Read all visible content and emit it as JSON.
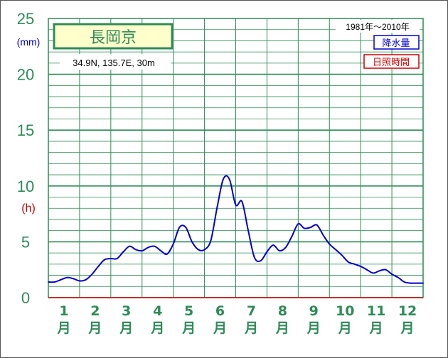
{
  "chart_data": {
    "type": "line",
    "title": "長岡京",
    "location": "34.9N,  135.7E,  30m",
    "period": "1981年〜2010年",
    "y_unit_precip": "(mm)",
    "y_unit_sun": "(h)",
    "ylim": [
      0,
      25
    ],
    "yticks": [
      "0",
      "5",
      "10",
      "15",
      "20",
      "25"
    ],
    "months": [
      "1",
      "2",
      "3",
      "4",
      "5",
      "6",
      "7",
      "8",
      "9",
      "10",
      "11",
      "12"
    ],
    "month_suffix": "月",
    "legend": {
      "precip": "降水量",
      "sunshine": "日照時間"
    },
    "series": [
      {
        "name": "降水量",
        "color": "#0000cc",
        "x": [
          0.5,
          0.7,
          0.9,
          1.1,
          1.3,
          1.5,
          1.7,
          1.9,
          2.1,
          2.3,
          2.5,
          2.7,
          2.9,
          3.1,
          3.3,
          3.5,
          3.7,
          3.9,
          4.1,
          4.3,
          4.5,
          4.7,
          4.9,
          5.1,
          5.3,
          5.5,
          5.7,
          5.9,
          6.1,
          6.3,
          6.5,
          6.7,
          6.9,
          7.1,
          7.3,
          7.5,
          7.7,
          7.9,
          8.1,
          8.3,
          8.5,
          8.7,
          8.9,
          9.1,
          9.3,
          9.5,
          9.7,
          9.9,
          10.1,
          10.3,
          10.5,
          10.7,
          10.9,
          11.1,
          11.3,
          11.5,
          11.7,
          11.9,
          12.1,
          12.3,
          12.5
        ],
        "values": [
          1.4,
          1.4,
          1.6,
          1.8,
          1.7,
          1.5,
          1.6,
          2.1,
          2.8,
          3.4,
          3.5,
          3.5,
          4.1,
          4.6,
          4.3,
          4.2,
          4.5,
          4.6,
          4.2,
          3.9,
          4.8,
          6.3,
          6.3,
          5.0,
          4.3,
          4.3,
          5.1,
          8.0,
          10.6,
          10.6,
          8.3,
          8.6,
          6.0,
          3.6,
          3.3,
          4.1,
          4.7,
          4.2,
          4.5,
          5.5,
          6.6,
          6.2,
          6.3,
          6.5,
          5.6,
          4.8,
          4.3,
          3.8,
          3.2,
          3.0,
          2.8,
          2.5,
          2.2,
          2.4,
          2.5,
          2.1,
          1.8,
          1.4,
          1.3,
          1.3,
          1.3
        ]
      }
    ]
  }
}
